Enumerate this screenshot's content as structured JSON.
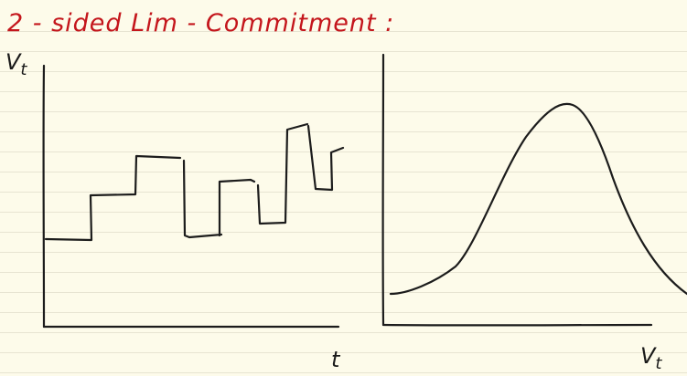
{
  "title": "2 - sided Lim - Commitment :",
  "left_graph": {
    "y_label": "V",
    "y_label_sub": "t",
    "x_label": "t"
  },
  "right_graph": {
    "x_label": "V",
    "x_label_sub": "t"
  },
  "colors": {
    "paper": "#fdfbea",
    "rule_lines": "#e7e4d2",
    "title_ink": "#c4161c",
    "pen_ink": "#1c1c1c"
  }
}
